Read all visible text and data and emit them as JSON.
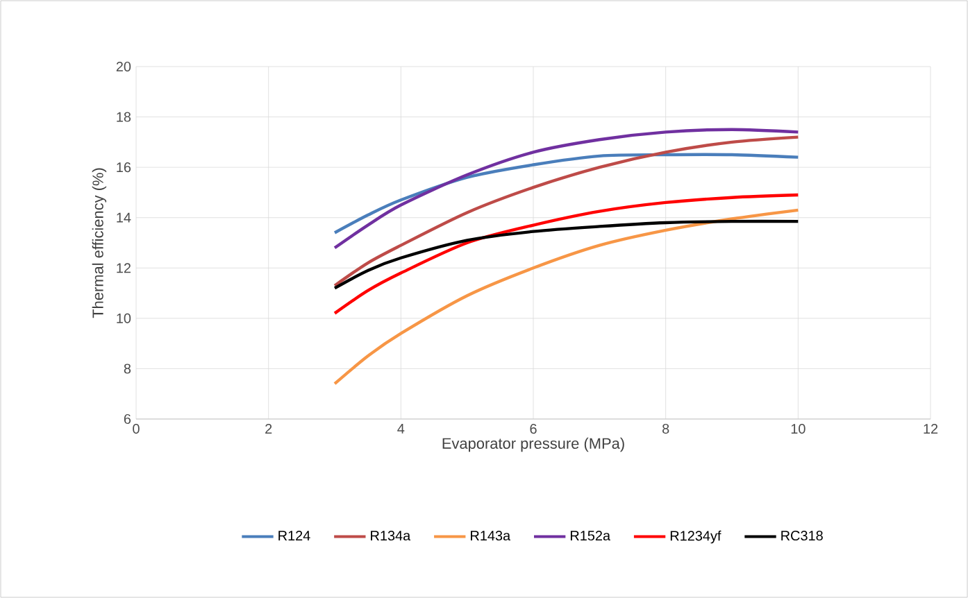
{
  "chart_data": {
    "type": "line",
    "xlabel": "Evaporator pressure (MPa)",
    "ylabel": "Thermal efficiency (%)",
    "x": [
      3,
      3.5,
      4,
      5,
      6,
      7,
      8,
      9,
      10
    ],
    "series": [
      {
        "name": "R124",
        "color": "#4a7ebb",
        "values": [
          13.4,
          14.1,
          14.7,
          15.6,
          16.1,
          16.45,
          16.5,
          16.5,
          16.4
        ]
      },
      {
        "name": "R134a",
        "color": "#be4b48",
        "values": [
          11.3,
          12.2,
          12.9,
          14.2,
          15.2,
          16.0,
          16.6,
          17.0,
          17.2
        ]
      },
      {
        "name": "R143a",
        "color": "#f79646",
        "values": [
          7.4,
          8.5,
          9.4,
          10.9,
          12.0,
          12.9,
          13.5,
          13.95,
          14.3
        ]
      },
      {
        "name": "R152a",
        "color": "#7030a0",
        "values": [
          12.8,
          13.7,
          14.5,
          15.7,
          16.6,
          17.1,
          17.4,
          17.5,
          17.4
        ]
      },
      {
        "name": "R1234yf",
        "color": "#ff0000",
        "values": [
          10.2,
          11.1,
          11.8,
          13.0,
          13.7,
          14.25,
          14.6,
          14.8,
          14.9
        ]
      },
      {
        "name": "RC318",
        "color": "#000000",
        "values": [
          11.2,
          11.9,
          12.4,
          13.1,
          13.45,
          13.65,
          13.8,
          13.85,
          13.85
        ]
      }
    ],
    "xlim": [
      0,
      12
    ],
    "xticks": [
      0,
      2,
      4,
      6,
      8,
      10,
      12
    ],
    "ylim": [
      6,
      20
    ],
    "yticks": [
      6,
      8,
      10,
      12,
      14,
      16,
      18,
      20
    ],
    "grid": true,
    "legend": "bottom"
  }
}
